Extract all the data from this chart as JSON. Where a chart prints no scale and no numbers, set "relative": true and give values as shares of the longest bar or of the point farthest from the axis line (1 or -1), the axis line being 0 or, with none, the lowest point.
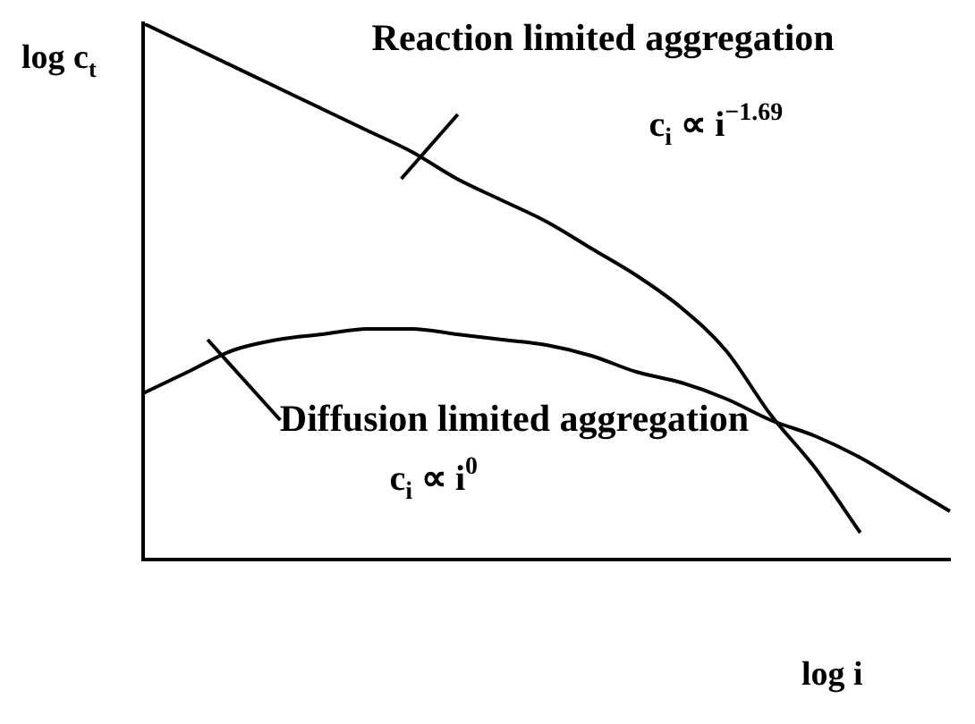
{
  "chart_data": {
    "type": "line",
    "relative": true,
    "xlabel": "log i",
    "ylabel": "log c$_{t}$",
    "categories": [
      null,
      null,
      null,
      null,
      null,
      null,
      null,
      null,
      null,
      null,
      null,
      null,
      null,
      null,
      null,
      null,
      null,
      null,
      null
    ],
    "series": [
      {
        "name": "Reaction limited aggregation",
        "color": "#000000",
        "values": [
          1.0,
          0.96,
          0.92,
          0.88,
          0.84,
          0.8,
          0.76,
          0.71,
          0.67,
          0.63,
          0.58,
          0.53,
          0.47,
          0.39,
          0.27,
          0.17,
          0.05,
          null,
          null
        ]
      },
      {
        "name": "Diffusion limited aggregation",
        "color": "#000000",
        "values": [
          0.31,
          0.35,
          0.39,
          0.41,
          0.42,
          0.43,
          0.43,
          0.42,
          0.41,
          0.4,
          0.38,
          0.35,
          0.33,
          0.3,
          0.26,
          0.23,
          0.19,
          0.14,
          0.09
        ]
      }
    ],
    "annotations": [
      "c$_{i}$ ∝ i$^{−1.69}$",
      "c$_{i}$ ∝ i$^{0}$"
    ],
    "legend": false,
    "grid": false,
    "marker": "none",
    "line_style": "solid"
  }
}
